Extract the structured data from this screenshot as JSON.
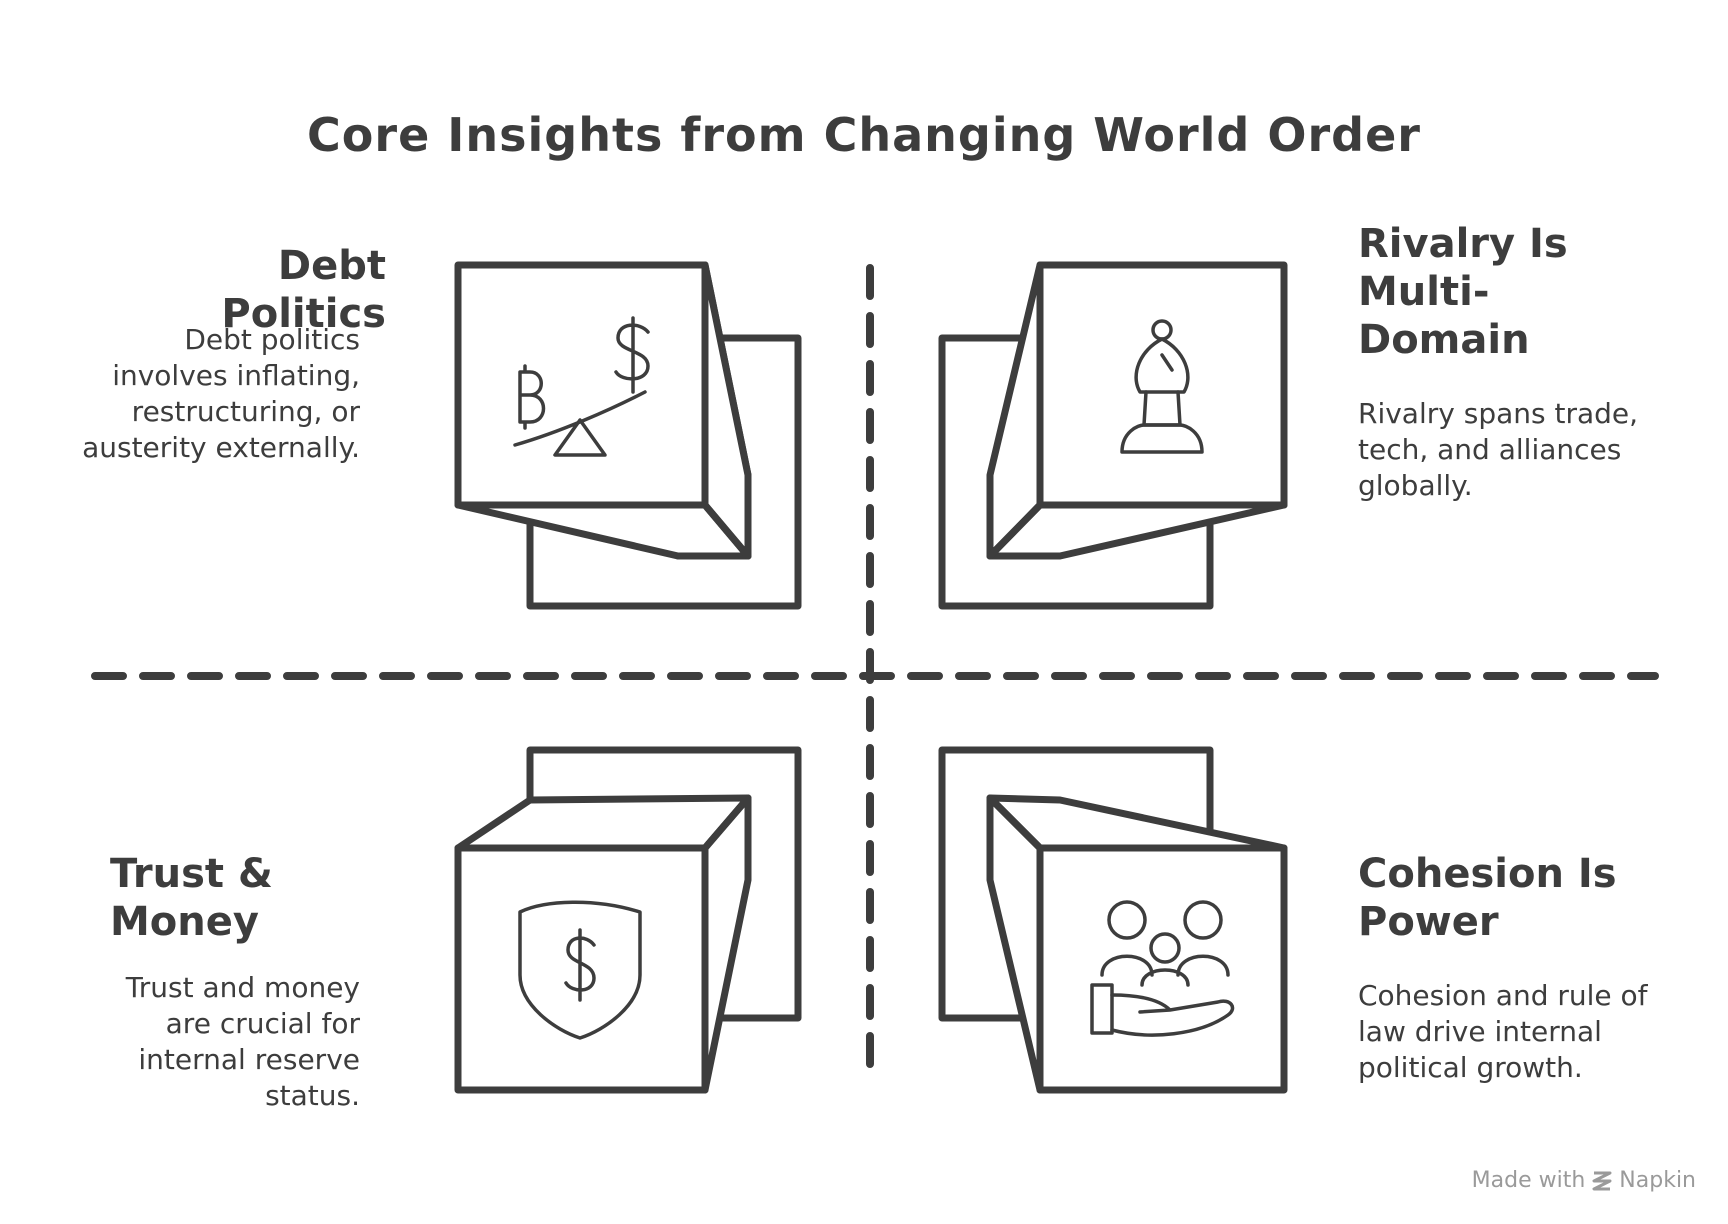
{
  "title": "Core Insights from Changing World Order",
  "quadrants": {
    "top_left": {
      "heading": "Debt Politics",
      "description": "Debt politics involves inflating, restructuring, or austerity externally.",
      "icon": "bitcoin-dollar-seesaw-icon"
    },
    "top_right": {
      "heading": "Rivalry Is Multi-Domain",
      "description": "Rivalry spans trade, tech, and alliances globally.",
      "icon": "chess-bishop-icon"
    },
    "bottom_left": {
      "heading": "Trust & Money",
      "description": "Trust and money are crucial for internal reserve status.",
      "icon": "shield-dollar-icon"
    },
    "bottom_right": {
      "heading": "Cohesion Is Power",
      "description": "Cohesion and rule of law drive internal political growth.",
      "icon": "people-in-hand-icon"
    }
  },
  "footer": {
    "made_with": "Made with",
    "brand": "Napkin"
  },
  "colors": {
    "stroke": "#3d3d3d",
    "text": "#3d3d3d",
    "footer_text": "#9a9a9a",
    "background": "#ffffff"
  }
}
